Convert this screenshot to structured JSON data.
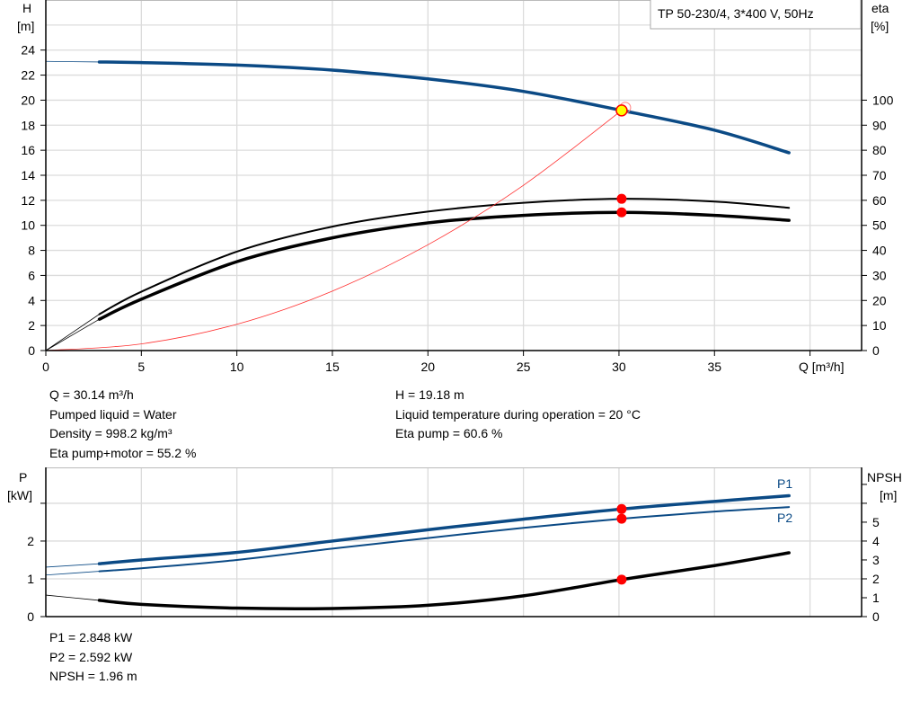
{
  "chart_data": [
    {
      "type": "line",
      "title": "TP 50-230/4, 3*400 V, 50Hz",
      "xlabel": "Q [m³/h]",
      "ylabel": "H\n[m]",
      "ylabel_lines": [
        "H",
        "[m]"
      ],
      "y2label_lines": [
        "eta",
        "[%]"
      ],
      "xlim": [
        0,
        42.7
      ],
      "ylim": [
        0,
        28
      ],
      "y2lim": [
        0,
        140
      ],
      "xticks": [
        0,
        5,
        10,
        15,
        20,
        25,
        30,
        35
      ],
      "yticks": [
        0,
        2,
        4,
        6,
        8,
        10,
        12,
        14,
        16,
        18,
        20,
        22,
        24
      ],
      "y2ticks": [
        0,
        10,
        20,
        30,
        40,
        50,
        60,
        70,
        80,
        90,
        100
      ],
      "grid": true,
      "series": [
        {
          "key": "H",
          "axis": "left",
          "color": "#0b4a85",
          "width": 3.5,
          "x": [
            0,
            2.8,
            5,
            10,
            15,
            20,
            25,
            30.14,
            35,
            38.9
          ],
          "y": [
            23.1,
            23.05,
            23.0,
            22.8,
            22.4,
            21.7,
            20.7,
            19.18,
            17.6,
            15.8
          ]
        },
        {
          "key": "eta_pump",
          "axis": "right",
          "color": "#000000",
          "width": 2,
          "x": [
            0,
            2.8,
            5,
            10,
            15,
            20,
            25,
            30.14,
            35,
            38.9
          ],
          "y": [
            0,
            14.5,
            23.5,
            39.5,
            49.5,
            55.5,
            59,
            60.6,
            59.5,
            57
          ]
        },
        {
          "key": "eta_total",
          "axis": "right",
          "color": "#000000",
          "width": 3.5,
          "x": [
            0,
            2.8,
            5,
            10,
            15,
            20,
            25,
            30.14,
            35,
            38.9
          ],
          "y": [
            0,
            12.5,
            20.5,
            35.5,
            45,
            51,
            54,
            55.2,
            54,
            52
          ]
        },
        {
          "key": "system_curve",
          "axis": "left",
          "color": "#ff3030",
          "width": 0.8,
          "x": [
            0,
            5,
            10,
            15,
            20,
            25,
            30.14
          ],
          "y": [
            0,
            0.53,
            2.1,
            4.75,
            8.45,
            13.2,
            19.18
          ]
        }
      ],
      "duty_point": {
        "x": 30.14,
        "y": 19.18
      },
      "markers_right": [
        60.6,
        55.2
      ]
    },
    {
      "type": "line",
      "ylabel_lines": [
        "P",
        "[kW]"
      ],
      "y2label_lines": [
        "NPSH",
        "[m]"
      ],
      "xlim": [
        0,
        42.7
      ],
      "ylim": [
        0,
        3.95
      ],
      "y2lim": [
        0,
        7.9
      ],
      "yticks": [
        0,
        1,
        2,
        3
      ],
      "ytick_labels": [
        "0",
        "1",
        "2",
        ""
      ],
      "y2ticks": [
        0,
        1,
        2,
        3,
        4,
        5,
        6,
        7
      ],
      "y2tick_labels": [
        "0",
        "1",
        "2",
        "3",
        "4",
        "5",
        "",
        ""
      ],
      "grid": true,
      "series": [
        {
          "key": "P1",
          "name": "P1",
          "axis": "left",
          "color": "#0b4a85",
          "width": 3.5,
          "x": [
            0,
            2.8,
            5,
            10,
            15,
            20,
            25,
            30.14,
            35,
            38.9
          ],
          "y": [
            1.31,
            1.4,
            1.5,
            1.7,
            2.0,
            2.3,
            2.58,
            2.848,
            3.05,
            3.2
          ]
        },
        {
          "key": "P2",
          "name": "P2",
          "axis": "left",
          "color": "#0b4a85",
          "width": 2,
          "x": [
            0,
            2.8,
            5,
            10,
            15,
            20,
            25,
            30.14,
            35,
            38.9
          ],
          "y": [
            1.1,
            1.2,
            1.28,
            1.5,
            1.8,
            2.08,
            2.35,
            2.592,
            2.78,
            2.9
          ]
        },
        {
          "key": "NPSH",
          "axis": "right",
          "color": "#000000",
          "width": 3.5,
          "x": [
            0,
            2.8,
            5,
            10,
            15,
            20,
            25,
            30.14,
            35,
            38.9
          ],
          "y": [
            1.14,
            0.86,
            0.65,
            0.45,
            0.43,
            0.6,
            1.1,
            1.96,
            2.7,
            3.38
          ]
        }
      ],
      "markers": [
        {
          "axis": "left",
          "y": 2.848
        },
        {
          "axis": "left",
          "y": 2.592
        },
        {
          "axis": "right",
          "y": 1.96
        }
      ]
    }
  ],
  "info_top": {
    "q": "Q = 30.14 m³/h",
    "liquid": "Pumped liquid = Water",
    "density": "Density = 998.2 kg/m³",
    "eta_total": "Eta pump+motor = 55.2 %",
    "h": "H = 19.18 m",
    "temp": "Liquid temperature during operation = 20 °C",
    "eta_pump": "Eta pump = 60.6 %"
  },
  "info_bottom": {
    "p1": "P1 = 2.848 kW",
    "p2": "P2 = 2.592 kW",
    "npsh": "NPSH = 1.96 m"
  },
  "colors": {
    "curve_blue": "#0b4a85",
    "marker_red": "#ff0000",
    "duty_yellow": "#ffff00",
    "grid": "#dcdcdc"
  }
}
